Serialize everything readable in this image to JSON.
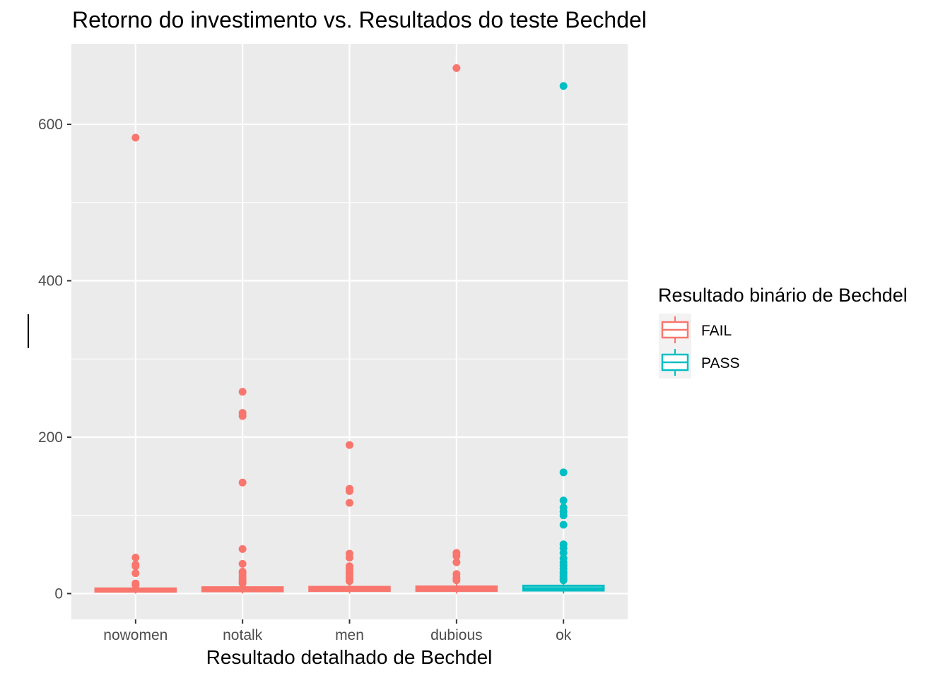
{
  "chart_data": {
    "type": "boxplot",
    "title": "Retorno do investimento vs. Resultados do teste Bechdel",
    "xlabel": "Resultado detalhado de Bechdel",
    "ylabel": "",
    "ylim": [
      -33,
      703
    ],
    "yticks": [
      0,
      200,
      400,
      600
    ],
    "grid": true,
    "legend": {
      "title": "Resultado binário de Bechdel",
      "placement": "right",
      "entries": [
        {
          "label": "FAIL",
          "color": "#F8766D"
        },
        {
          "label": "PASS",
          "color": "#00BFC4"
        }
      ]
    },
    "categories": [
      "nowomen",
      "notalk",
      "men",
      "dubious",
      "ok"
    ],
    "boxes": [
      {
        "category": "nowomen",
        "group": "FAIL",
        "q1": 2.5,
        "median": 4.0,
        "q3": 6.5,
        "whisker_low": 0,
        "whisker_high": 10,
        "outliers": [
          583,
          46,
          37,
          35,
          26,
          13,
          11
        ]
      },
      {
        "category": "notalk",
        "group": "FAIL",
        "q1": 3.0,
        "median": 5.0,
        "q3": 8.0,
        "whisker_low": 0,
        "whisker_high": 12,
        "outliers": [
          258,
          231,
          227,
          142,
          57,
          38,
          28,
          26,
          22,
          18,
          15,
          13
        ]
      },
      {
        "category": "men",
        "group": "FAIL",
        "q1": 3.5,
        "median": 5.5,
        "q3": 8.5,
        "whisker_low": 0,
        "whisker_high": 14,
        "outliers": [
          190,
          134,
          131,
          116,
          51,
          46,
          35,
          32,
          28,
          25,
          22,
          19,
          16
        ]
      },
      {
        "category": "dubious",
        "group": "FAIL",
        "q1": 3.5,
        "median": 6.0,
        "q3": 9.0,
        "whisker_low": 0,
        "whisker_high": 13,
        "outliers": [
          672,
          52,
          48,
          40,
          25,
          20,
          17
        ]
      },
      {
        "category": "ok",
        "group": "PASS",
        "q1": 4.0,
        "median": 6.5,
        "q3": 10.0,
        "whisker_low": 0,
        "whisker_high": 14,
        "outliers": [
          649,
          155,
          119,
          110,
          105,
          100,
          88,
          63,
          58,
          52,
          45,
          40,
          36,
          32,
          28,
          25,
          22,
          19,
          17
        ]
      }
    ]
  }
}
